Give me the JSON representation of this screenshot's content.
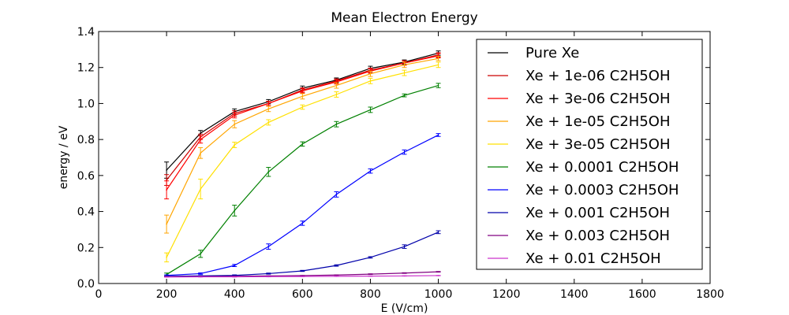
{
  "chart_data": {
    "type": "line",
    "title": "Mean Electron Energy",
    "xlabel": "E (V/cm)",
    "ylabel": "energy / eV",
    "xlim": [
      0,
      1800
    ],
    "ylim": [
      0,
      1.4
    ],
    "xticks": [
      "0",
      "200",
      "400",
      "600",
      "800",
      "1000",
      "1200",
      "1400",
      "1600",
      "1800"
    ],
    "yticks": [
      "0.0",
      "0.2",
      "0.4",
      "0.6",
      "0.8",
      "1.0",
      "1.2",
      "1.4"
    ],
    "grid": false,
    "legend_position": "top-right",
    "x": [
      200,
      300,
      400,
      500,
      600,
      700,
      800,
      900,
      1000
    ],
    "series": [
      {
        "name": "Pure Xe",
        "color": "#000000",
        "values": [
          0.63,
          0.835,
          0.955,
          1.01,
          1.085,
          1.13,
          1.195,
          1.23,
          1.28
        ],
        "errors": [
          0.045,
          0.015,
          0.015,
          0.012,
          0.012,
          0.012,
          0.012,
          0.012,
          0.012
        ]
      },
      {
        "name": "Xe + 1e-06 C2H5OH",
        "color": "#cc0000",
        "values": [
          0.575,
          0.815,
          0.945,
          1.0,
          1.075,
          1.125,
          1.185,
          1.225,
          1.27
        ],
        "errors": [
          0.03,
          0.015,
          0.015,
          0.012,
          0.012,
          0.012,
          0.012,
          0.012,
          0.012
        ]
      },
      {
        "name": "Xe + 3e-06 C2H5OH",
        "color": "#ff0000",
        "values": [
          0.52,
          0.8,
          0.935,
          1.0,
          1.07,
          1.12,
          1.18,
          1.225,
          1.265
        ],
        "errors": [
          0.05,
          0.02,
          0.015,
          0.012,
          0.012,
          0.012,
          0.012,
          0.012,
          0.012
        ]
      },
      {
        "name": "Xe + 1e-05 C2H5OH",
        "color": "#ffa500",
        "values": [
          0.33,
          0.725,
          0.885,
          0.97,
          1.04,
          1.1,
          1.165,
          1.215,
          1.25
        ],
        "errors": [
          0.05,
          0.03,
          0.02,
          0.015,
          0.015,
          0.015,
          0.015,
          0.015,
          0.012
        ]
      },
      {
        "name": "Xe + 3e-05 C2H5OH",
        "color": "#ffe000",
        "values": [
          0.145,
          0.525,
          0.77,
          0.895,
          0.98,
          1.05,
          1.125,
          1.17,
          1.215
        ],
        "errors": [
          0.025,
          0.055,
          0.015,
          0.015,
          0.012,
          0.015,
          0.015,
          0.015,
          0.015
        ]
      },
      {
        "name": "Xe + 0.0001 C2H5OH",
        "color": "#008000",
        "values": [
          0.05,
          0.165,
          0.405,
          0.62,
          0.775,
          0.885,
          0.965,
          1.045,
          1.1
        ],
        "errors": [
          0.008,
          0.02,
          0.03,
          0.025,
          0.012,
          0.015,
          0.015,
          0.008,
          0.012
        ]
      },
      {
        "name": "Xe + 0.0003 C2H5OH",
        "color": "#0000ff",
        "values": [
          0.045,
          0.055,
          0.1,
          0.205,
          0.335,
          0.495,
          0.625,
          0.73,
          0.825
        ],
        "errors": [
          0.003,
          0.004,
          0.006,
          0.015,
          0.012,
          0.015,
          0.012,
          0.012,
          0.008
        ]
      },
      {
        "name": "Xe + 0.001 C2H5OH",
        "color": "#0000aa",
        "values": [
          0.04,
          0.042,
          0.045,
          0.055,
          0.07,
          0.1,
          0.145,
          0.205,
          0.285
        ],
        "errors": [
          0.002,
          0.002,
          0.003,
          0.003,
          0.003,
          0.004,
          0.004,
          0.01,
          0.008
        ]
      },
      {
        "name": "Xe + 0.003 C2H5OH",
        "color": "#800080",
        "values": [
          0.038,
          0.039,
          0.04,
          0.042,
          0.044,
          0.047,
          0.052,
          0.058,
          0.065
        ],
        "errors": [
          0.001,
          0.001,
          0.001,
          0.001,
          0.001,
          0.001,
          0.002,
          0.002,
          0.002
        ]
      },
      {
        "name": "Xe + 0.01 C2H5OH",
        "color": "#cc33cc",
        "values": [
          0.036,
          0.037,
          0.037,
          0.038,
          0.039,
          0.04,
          0.041,
          0.042,
          0.044
        ],
        "errors": [
          0.001,
          0.001,
          0.001,
          0.001,
          0.001,
          0.001,
          0.001,
          0.001,
          0.001
        ]
      }
    ]
  }
}
